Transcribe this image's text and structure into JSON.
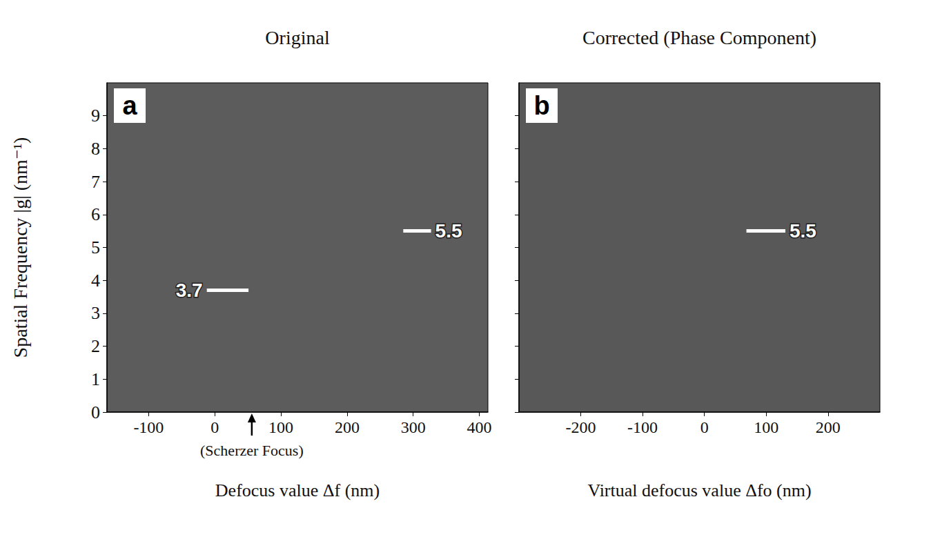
{
  "chart_data": [
    {
      "type": "image",
      "panel": "a",
      "title": "Original",
      "x_label": "Defocus value Δf (nm)",
      "y_label": "Spatial Frequency |g| (nm⁻¹)",
      "xlim": [
        -163,
        413
      ],
      "ylim": [
        0,
        10
      ],
      "xticks": [
        -100,
        0,
        100,
        200,
        300,
        400
      ],
      "yticks": [
        0,
        1,
        2,
        3,
        4,
        5,
        6,
        7,
        8,
        9
      ],
      "color": "#5c5c5c",
      "grid": false,
      "annotations": [
        {
          "text": "3.7",
          "x": 51,
          "y": 3.7,
          "text_x": -12
        },
        {
          "text": "5.5",
          "x": 285,
          "y": 5.5,
          "text_x": 327
        }
      ],
      "markers": [
        {
          "text": "(Scherzer Focus)",
          "x": 56
        }
      ]
    },
    {
      "type": "image",
      "panel": "b",
      "title": "Corrected (Phase Component)",
      "x_label": "Virtual defocus value Δfo (nm)",
      "xlim": [
        -300,
        284
      ],
      "ylim": [
        0,
        10
      ],
      "xticks": [
        -200,
        -100,
        0,
        100,
        200
      ],
      "yticks": [
        0,
        1,
        2,
        3,
        4,
        5,
        6,
        7,
        8,
        9
      ],
      "tick_labels": "x",
      "color": "#585858",
      "grid": false,
      "annotations": [
        {
          "text": "5.5",
          "x": 68,
          "y": 5.5,
          "text_x": 131
        }
      ]
    }
  ]
}
